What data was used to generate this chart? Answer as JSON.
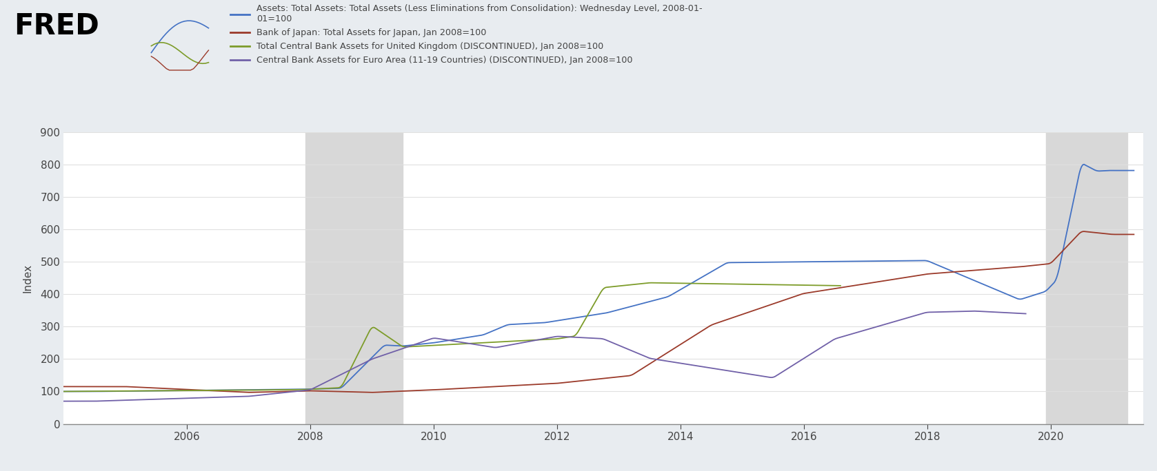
{
  "ylabel": "Index",
  "background_color": "#e8ecf0",
  "plot_background": "#ffffff",
  "recession_shade_1": {
    "start": 2007.92,
    "end": 2009.5
  },
  "recession_shade_2": {
    "start": 2019.92,
    "end": 2021.25
  },
  "ylim": [
    0,
    900
  ],
  "yticks": [
    0,
    100,
    200,
    300,
    400,
    500,
    600,
    700,
    800,
    900
  ],
  "xlim": [
    2004.0,
    2021.5
  ],
  "xtick_years": [
    2006,
    2008,
    2010,
    2012,
    2014,
    2016,
    2018,
    2020
  ],
  "series": {
    "fed": {
      "color": "#4472c4",
      "label": "Assets: Total Assets: Total Assets (Less Eliminations from Consolidation): Wednesday Level, 2008-01-\n01=100",
      "linewidth": 1.3
    },
    "boj": {
      "color": "#9b3a2a",
      "label": "Bank of Japan: Total Assets for Japan, Jan 2008=100",
      "linewidth": 1.3
    },
    "boe": {
      "color": "#7d9c2a",
      "label": "Total Central Bank Assets for United Kingdom (DISCONTINUED), Jan 2008=100",
      "linewidth": 1.3
    },
    "ecb": {
      "color": "#7060a8",
      "label": "Central Bank Assets for Euro Area (11-19 Countries) (DISCONTINUED), Jan 2008=100",
      "linewidth": 1.3
    }
  },
  "fred_text_color": "#444444",
  "grid_color": "#e0e0e0",
  "shade_color": "#d8d8d8"
}
